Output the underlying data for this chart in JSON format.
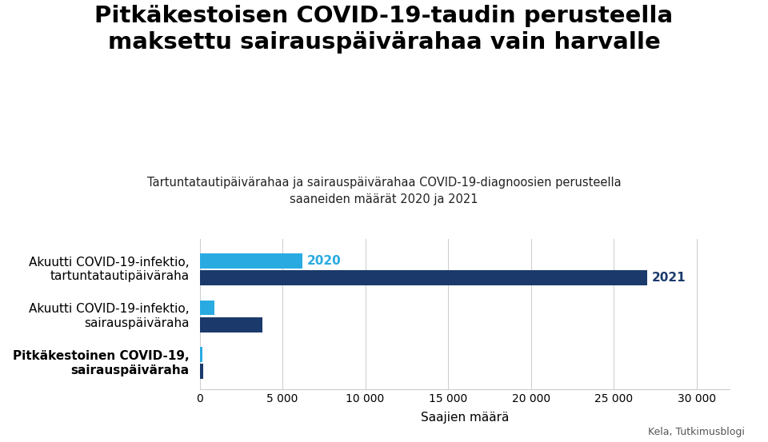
{
  "title": "Pitkäkestoisen COVID-19-taudin perusteella\nmaksettu sairauspäivärahaa vain harvalle",
  "subtitle": "Tartuntatautipäivärahaa ja sairauspäivärahaa COVID-19-diagnoosien perusteella\nsaaneiden määrät 2020 ja 2021",
  "categories": [
    "Akuutti COVID-19-infektio,\ntartuntatautipäiväraha",
    "Akuutti COVID-19-infektio,\nsairauspäiväraha",
    "Pitkäkestoinen COVID-19,\nsairauspäiväraha"
  ],
  "categories_bold": [
    false,
    false,
    true
  ],
  "values_2020": [
    6200,
    900,
    150
  ],
  "values_2021": [
    27000,
    3800,
    200
  ],
  "color_2020": "#29ABE2",
  "color_2021": "#1B3A6B",
  "xlabel": "Saajien määrä",
  "xlim": [
    0,
    32000
  ],
  "xticks": [
    0,
    5000,
    10000,
    15000,
    20000,
    25000,
    30000
  ],
  "xtick_labels": [
    "0",
    "5 000",
    "10 000",
    "15 000",
    "20 000",
    "25 000",
    "30 000"
  ],
  "source": "Kela, Tutkimusblogi",
  "background_color": "#FFFFFF",
  "bar_height": 0.32,
  "label_2020": "2020",
  "label_2021": "2021",
  "show_label_on_groups": [
    0
  ]
}
